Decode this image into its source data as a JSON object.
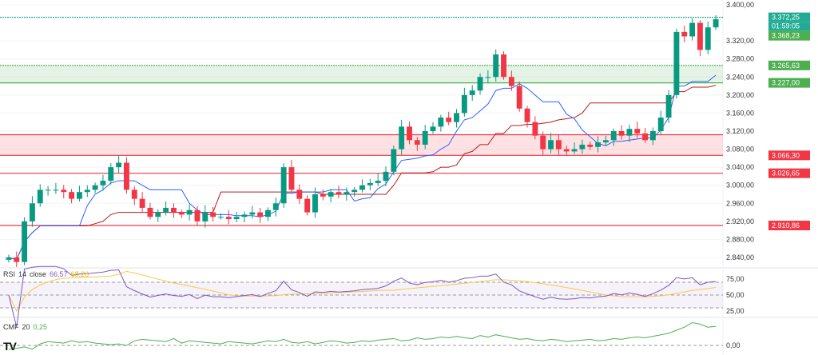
{
  "chart_data": {
    "type": "candlestick",
    "price_axis": {
      "min": 2820,
      "max": 3410,
      "ticks": [
        "3.400,00",
        "3.320,00",
        "3.280,00",
        "3.240,00",
        "3.200,00",
        "3.160,00",
        "3.120,00",
        "3.080,00",
        "3.040,00",
        "3.000,00",
        "2.960,00",
        "2.920,00",
        "2.880,00",
        "2.840,00"
      ]
    },
    "closes": [
      2840,
      2830,
      2920,
      2960,
      2990,
      2990,
      2990,
      2985,
      2970,
      2985,
      2990,
      3000,
      3010,
      3040,
      3050,
      2990,
      2970,
      2950,
      2930,
      2940,
      2950,
      2940,
      2935,
      2945,
      2920,
      2940,
      2930,
      2930,
      2925,
      2930,
      2935,
      2940,
      2930,
      2945,
      2960,
      3040,
      2990,
      2970,
      2940,
      2980,
      2975,
      2985,
      2980,
      2985,
      2990,
      3000,
      3005,
      3010,
      3030,
      3080,
      3130,
      3100,
      3090,
      3120,
      3130,
      3150,
      3140,
      3160,
      3200,
      3210,
      3240,
      3240,
      3290,
      3240,
      3220,
      3170,
      3140,
      3110,
      3080,
      3100,
      3080,
      3075,
      3080,
      3090,
      3085,
      3095,
      3100,
      3120,
      3110,
      3125,
      3115,
      3100,
      3120,
      3150,
      3200,
      3340,
      3330,
      3360,
      3300,
      3350,
      3368
    ],
    "levels": [
      {
        "price": 3372.25,
        "label": "3.372,25",
        "color": "#22ab94"
      },
      {
        "price": 3265.63,
        "label": "3.265,63",
        "color": "#4caf50"
      },
      {
        "price": 3227.0,
        "label": "3.227,00",
        "color": "#4caf50"
      },
      {
        "price": 3066.3,
        "label": "3.066,30",
        "color": "#f23645"
      },
      {
        "price": 3026.65,
        "label": "3.026,65",
        "color": "#f23645"
      },
      {
        "price": 2910.86,
        "label": "2.910,86",
        "color": "#f23645"
      }
    ],
    "zones": [
      {
        "from": 3227.0,
        "to": 3265.63,
        "color": "#4caf50"
      },
      {
        "from": 3066.3,
        "to": 3112.0,
        "color": "#f23645"
      }
    ],
    "last_price": {
      "label": "3.368,23",
      "countdown": "01:59:05"
    },
    "rsi": {
      "title": "RSI",
      "length": "14",
      "source": "close",
      "value": "66,57",
      "ma_value": "68,26",
      "ticks": [
        "75,00",
        "50,00",
        "25,00"
      ]
    },
    "cmf": {
      "title": "CMF",
      "length": "20",
      "value": "0,25",
      "ticks": [
        "0,00"
      ],
      "values": [
        -0.05,
        -0.04,
        -0.02,
        -0.05,
        0.02,
        0.05,
        0.04,
        0.03,
        0.06,
        0.04,
        0.05,
        0.03,
        0.02,
        0.01,
        0.02,
        0.0,
        0.06,
        0.08,
        0.07,
        0.06,
        0.05,
        0.09,
        0.03,
        0.06,
        0.05,
        0.04,
        0.03,
        0.02,
        0.05,
        0.04,
        0.03,
        0.02,
        0.04,
        0.06,
        0.05,
        0.08,
        0.04,
        0.03,
        0.05,
        0.02,
        0.04,
        0.06,
        0.05,
        0.03,
        0.04,
        0.06,
        0.05,
        0.07,
        0.08,
        0.09,
        0.06,
        0.07,
        0.1,
        0.08,
        0.09,
        0.11,
        0.1,
        0.12,
        0.1,
        0.09,
        0.13,
        0.11,
        0.14,
        0.12,
        0.1,
        0.08,
        0.09,
        0.07,
        0.06,
        0.08,
        0.07,
        0.05,
        0.06,
        0.07,
        0.08,
        0.06,
        0.07,
        0.09,
        0.08,
        0.1,
        0.11,
        0.1,
        0.12,
        0.14,
        0.16,
        0.2,
        0.24,
        0.3,
        0.28,
        0.24,
        0.25
      ]
    }
  },
  "branding": {
    "logo": "TV"
  }
}
